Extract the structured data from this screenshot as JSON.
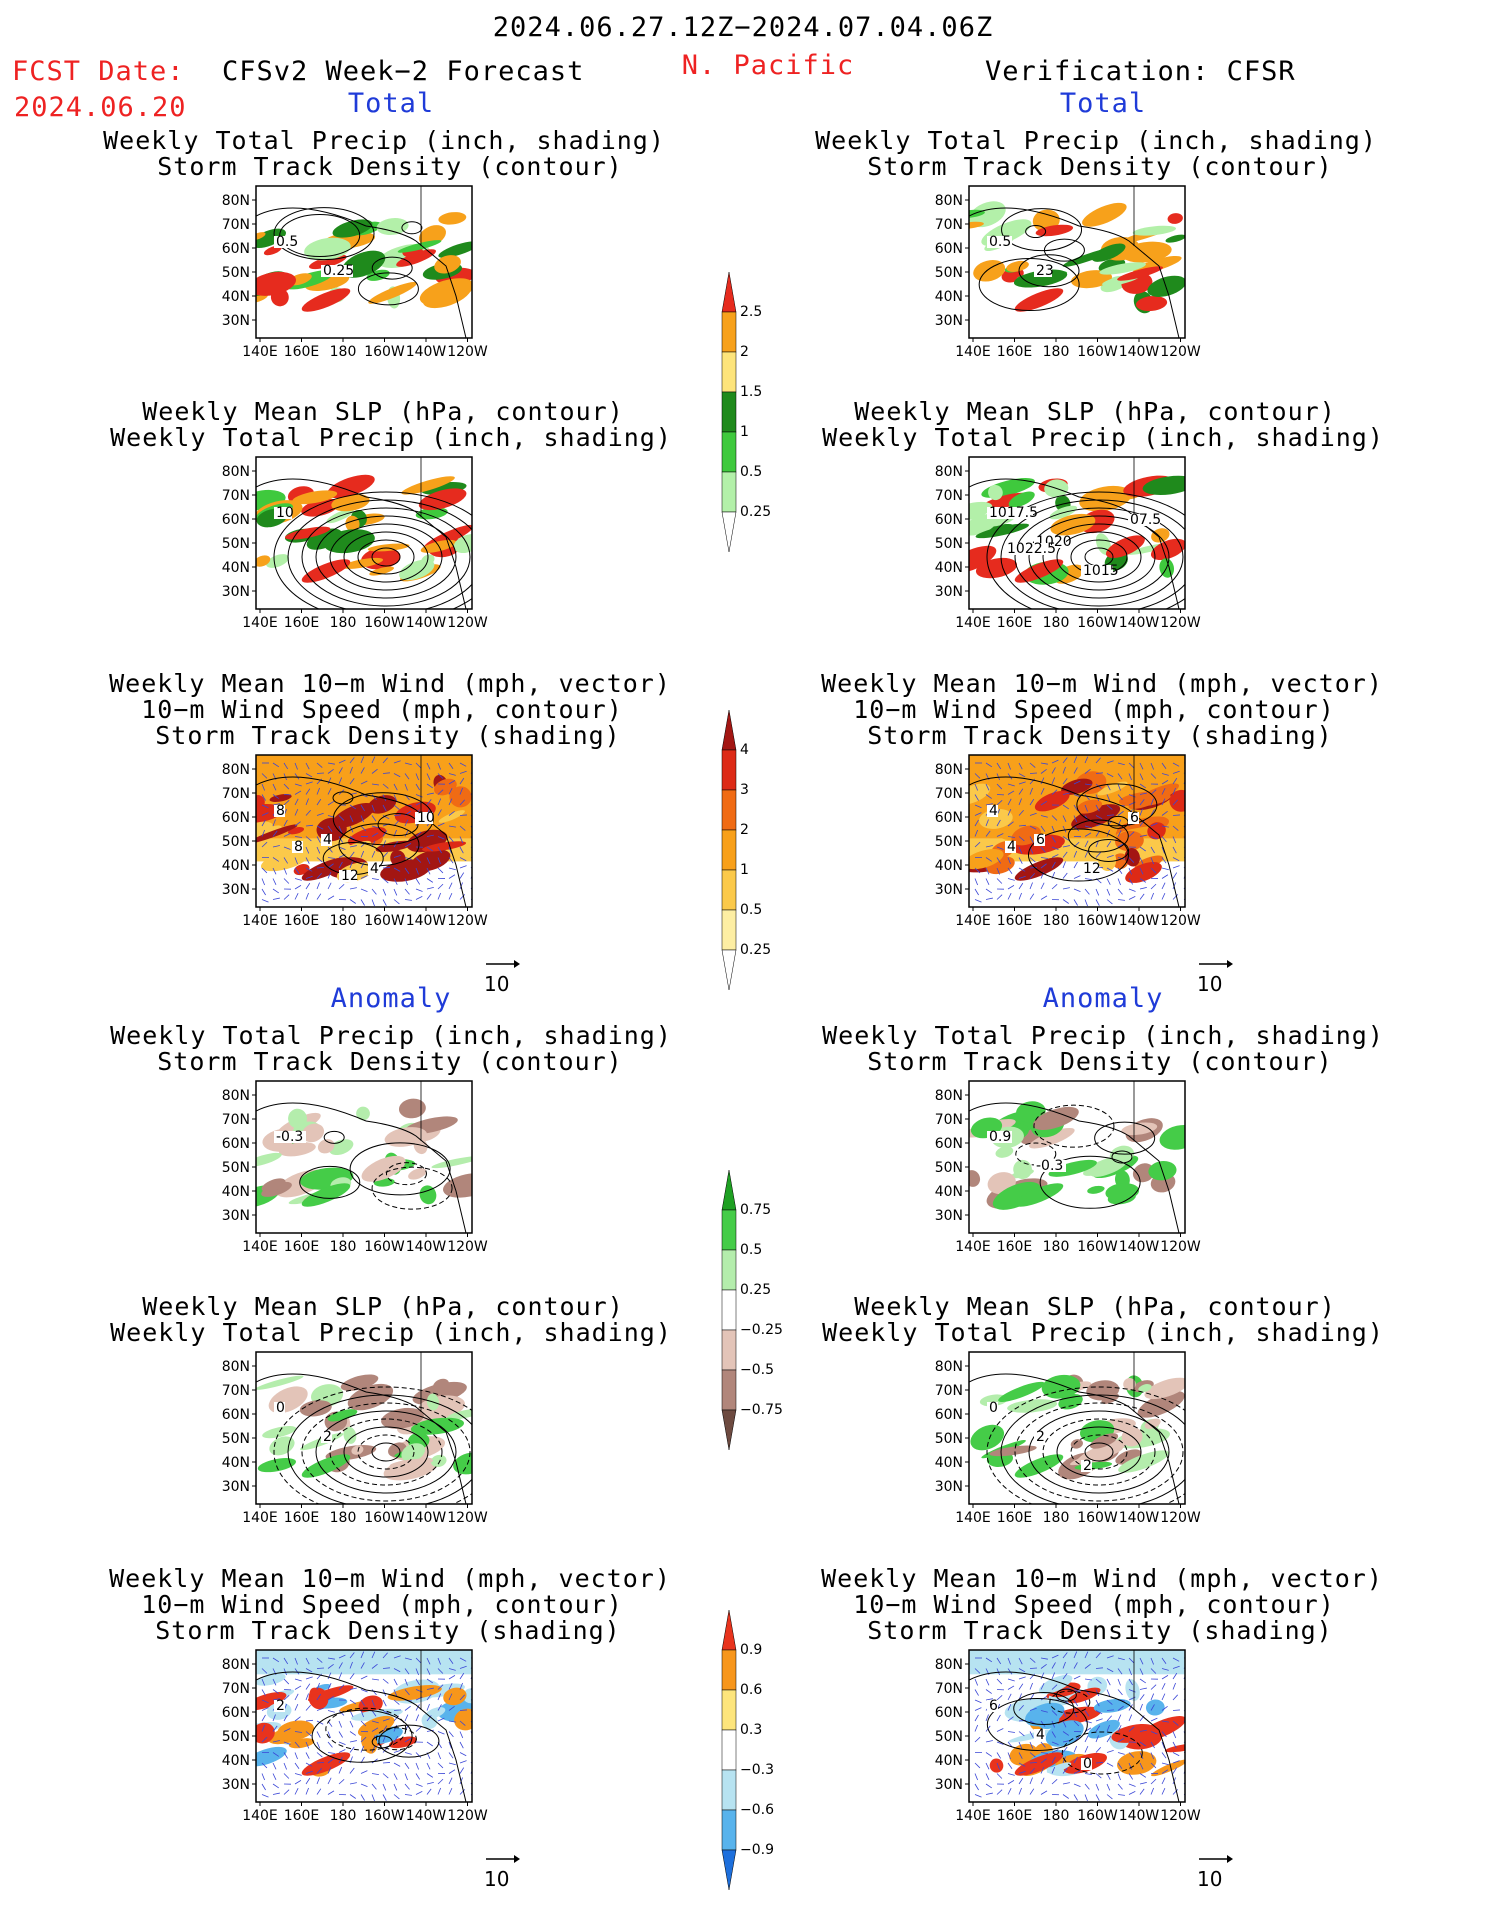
{
  "header": {
    "date_range": "2024.06.27.12Z−2024.07.04.06Z",
    "fcst_label": "FCST Date:",
    "fcst_date": "2024.06.20",
    "region": "N. Pacific",
    "left_model": "CFSv2 Week−2 Forecast",
    "right_model": "Verification: CFSR"
  },
  "section_labels": {
    "total": "Total",
    "anomaly": "Anomaly"
  },
  "panel_titles": {
    "precip_storm": [
      "Weekly Total Precip (inch, shading)",
      "Storm Track Density (contour)"
    ],
    "slp_precip": [
      "Weekly Mean SLP (hPa, contour)",
      "Weekly Total Precip (inch, shading)"
    ],
    "wind_storm": [
      "Weekly Mean 10−m Wind (mph, vector)",
      "10−m Wind Speed (mph, contour)",
      "Storm Track Density (shading)"
    ]
  },
  "axes": {
    "lat_ticks": [
      "80N",
      "70N",
      "60N",
      "50N",
      "40N",
      "30N"
    ],
    "lon_ticks": [
      "140E",
      "160E",
      "180",
      "160W",
      "140W",
      "120W"
    ]
  },
  "vector_reference": "10",
  "contour_labels": {
    "left_precip_total": [
      "0.5",
      "0.25"
    ],
    "right_precip_total": [
      "0.5",
      "23"
    ],
    "left_slp_total": [
      "10"
    ],
    "right_slp_total": [
      "1017.5",
      "1020",
      "1015",
      "07.5",
      "1022.5"
    ],
    "left_wind_total": [
      "8",
      "4",
      "4",
      "10",
      "8",
      "12"
    ],
    "right_wind_total": [
      "4",
      "6",
      "12",
      "6",
      "4"
    ],
    "left_precip_anom": [
      "-0.3"
    ],
    "right_precip_anom": [
      "0.9",
      "-0.3"
    ],
    "left_slp_anom": [
      "0",
      "2"
    ],
    "right_slp_anom": [
      "0",
      "2",
      "2"
    ],
    "left_wind_anom": [
      "2"
    ],
    "right_wind_anom": [
      "6",
      "4",
      "0"
    ]
  },
  "colorbars": {
    "precip": {
      "labels": [
        "2.5",
        "2",
        "1.5",
        "1",
        "0.5",
        "0.25"
      ],
      "colors": [
        "#e62b1e",
        "#f7a11b",
        "#fde47b",
        "#1f8a1c",
        "#3fc93d",
        "#b3f0a9"
      ]
    },
    "storm": {
      "labels": [
        "4",
        "3",
        "2",
        "1",
        "0.5",
        "0.25"
      ],
      "colors": [
        "#a31613",
        "#dd2a16",
        "#f06b14",
        "#f8a01a",
        "#fbc94a",
        "#fdeea3"
      ]
    },
    "precip_anom": {
      "labels": [
        "0.75",
        "0.5",
        "0.25",
        "−0.25",
        "−0.5",
        "−0.75"
      ],
      "colors": [
        "#1ea022",
        "#45cc48",
        "#b4edac",
        "#ffffff",
        "#e3c4b8",
        "#b1867b",
        "#6d4a40"
      ]
    },
    "storm_anom": {
      "labels": [
        "0.9",
        "0.6",
        "0.3",
        "−0.3",
        "−0.6",
        "−0.9"
      ],
      "colors": [
        "#e8331d",
        "#f7961b",
        "#fde57c",
        "#ffffff",
        "#b7e3f1",
        "#58b3ec",
        "#1d6fdc"
      ]
    }
  },
  "colors": {
    "ocean": "#ffffff",
    "land_outline": "#000000",
    "wind_vector": "#3a46d6",
    "title_red": "#ee2222",
    "label_blue": "#1f3bd8"
  }
}
